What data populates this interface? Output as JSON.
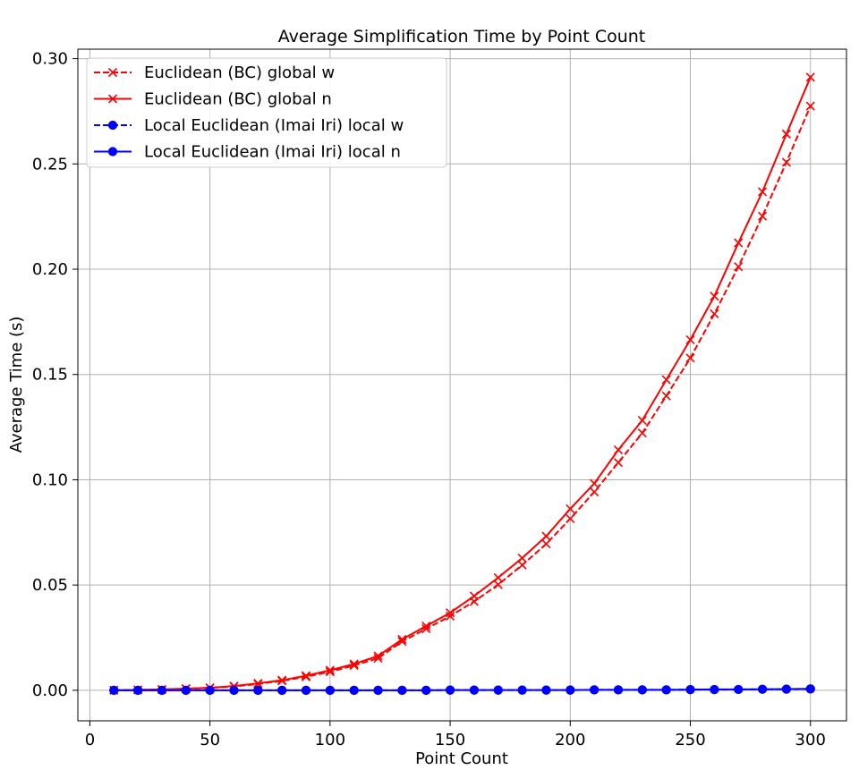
{
  "chart_data": {
    "type": "line",
    "title": "Average Simplification Time by Point Count",
    "xlabel": "Point Count",
    "ylabel": "Average Time (s)",
    "xlim": [
      -5,
      315
    ],
    "ylim": [
      -0.0145,
      0.3045
    ],
    "x_ticks": [
      0,
      50,
      100,
      150,
      200,
      250,
      300
    ],
    "y_ticks": [
      0.0,
      0.05,
      0.1,
      0.15,
      0.2,
      0.25,
      0.3
    ],
    "x_tick_labels": [
      "0",
      "50",
      "100",
      "150",
      "200",
      "250",
      "300"
    ],
    "y_tick_labels": [
      "0.00",
      "0.05",
      "0.10",
      "0.15",
      "0.20",
      "0.25",
      "0.30"
    ],
    "grid": true,
    "legend_position": "upper-left",
    "x": [
      10,
      20,
      30,
      40,
      50,
      60,
      70,
      80,
      90,
      100,
      110,
      120,
      130,
      140,
      150,
      160,
      170,
      180,
      190,
      200,
      210,
      220,
      230,
      240,
      250,
      260,
      270,
      280,
      290,
      300
    ],
    "series": [
      {
        "name": "Euclidean  (BC) global w",
        "color": "#ff0000",
        "line_style": "dashed",
        "marker": "x",
        "values": [
          0.0,
          0.0002,
          0.0004,
          0.0007,
          0.0011,
          0.0018,
          0.003,
          0.0045,
          0.0064,
          0.0088,
          0.0118,
          0.0152,
          0.0232,
          0.0292,
          0.0352,
          0.0422,
          0.0502,
          0.0595,
          0.0695,
          0.0815,
          0.0942,
          0.1082,
          0.1222,
          0.1398,
          0.1578,
          0.1788,
          0.2012,
          0.2252,
          0.2508,
          0.2775
        ]
      },
      {
        "name": "Euclidean  (BC) global n",
        "color": "#ff0000",
        "line_style": "solid",
        "marker": "x",
        "values": [
          0.0,
          0.0002,
          0.0004,
          0.0008,
          0.0012,
          0.002,
          0.0033,
          0.0048,
          0.0069,
          0.0095,
          0.0125,
          0.0163,
          0.0242,
          0.0305,
          0.0368,
          0.0448,
          0.0535,
          0.0628,
          0.0732,
          0.0862,
          0.0982,
          0.1142,
          0.1282,
          0.1475,
          0.1665,
          0.1872,
          0.2125,
          0.2368,
          0.2642,
          0.2912
        ]
      },
      {
        "name": "Local Euclidean  (Imai Iri) local w",
        "color": "#0000ff",
        "line_style": "dashed",
        "marker": "o",
        "values": [
          0.0,
          0.0,
          0.0,
          0.0,
          0.0,
          0.0,
          0.0,
          0.0,
          0.0,
          0.0,
          0.0,
          0.0,
          0.0,
          0.0,
          0.0001,
          0.0001,
          0.0001,
          0.0001,
          0.0001,
          0.0001,
          0.0002,
          0.0002,
          0.0002,
          0.0002,
          0.0003,
          0.0003,
          0.0004,
          0.0005,
          0.0005,
          0.0006
        ]
      },
      {
        "name": "Local Euclidean  (Imai Iri) local n",
        "color": "#0000ff",
        "line_style": "solid",
        "marker": "o",
        "values": [
          0.0,
          0.0,
          0.0,
          0.0,
          0.0,
          0.0,
          0.0,
          0.0,
          0.0,
          0.0,
          0.0,
          0.0,
          0.0,
          0.0,
          0.0001,
          0.0001,
          0.0001,
          0.0001,
          0.0001,
          0.0001,
          0.0002,
          0.0002,
          0.0002,
          0.0002,
          0.0003,
          0.0004,
          0.0004,
          0.0005,
          0.0006,
          0.0007
        ]
      }
    ]
  }
}
